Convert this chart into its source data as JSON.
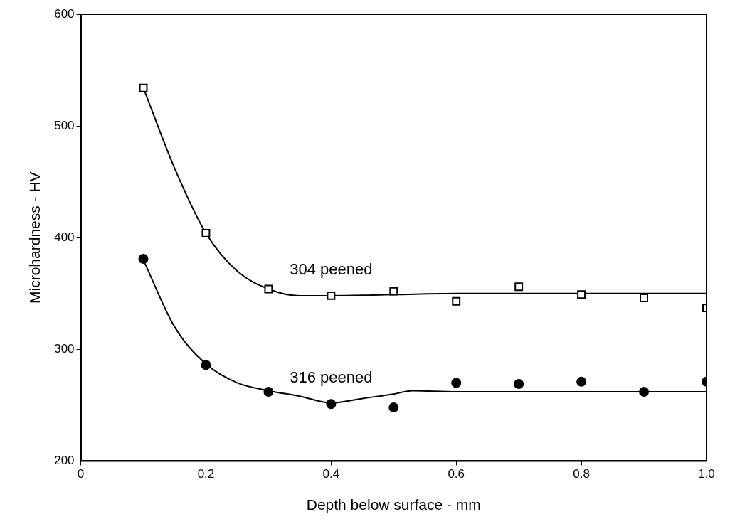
{
  "chart_data": {
    "type": "scatter",
    "xlabel": "Depth below surface - mm",
    "ylabel": "Microhardness - HV",
    "xlim": [
      0,
      1.0
    ],
    "xticks": [
      0,
      0.2,
      0.4,
      0.6,
      0.8,
      {
        "value": 1.0,
        "label": "1.0"
      }
    ],
    "ylim": [
      200,
      600
    ],
    "yticks": [
      200,
      300,
      400,
      500,
      600
    ],
    "grid": false,
    "legend": false,
    "series": [
      {
        "name": "304 peened",
        "marker": "square",
        "color": "#000000",
        "x": [
          0.1,
          0.2,
          0.3,
          0.4,
          0.5,
          0.6,
          0.7,
          0.8,
          0.9,
          1.0
        ],
        "values": [
          534,
          404,
          354,
          348,
          352,
          343,
          356,
          349,
          346,
          337
        ]
      },
      {
        "name": "316 peened",
        "marker": "circle",
        "color": "#000000",
        "x": [
          0.1,
          0.2,
          0.3,
          0.4,
          0.5,
          0.6,
          0.7,
          0.8,
          0.9,
          1.0
        ],
        "values": [
          381,
          286,
          262,
          251,
          248,
          270,
          269,
          271,
          262,
          271
        ]
      },
      {
        "type": "line",
        "marker": "none",
        "line_style": "solid",
        "color": "#000000",
        "x": [
          0.1,
          0.15,
          0.2,
          0.25,
          0.3,
          0.35,
          0.4,
          0.5,
          0.6,
          1.0
        ],
        "values": [
          534,
          462,
          404,
          370,
          354,
          348,
          348,
          349,
          350,
          350
        ]
      },
      {
        "type": "line",
        "marker": "none",
        "line_style": "solid",
        "color": "#000000",
        "x": [
          0.1,
          0.15,
          0.2,
          0.25,
          0.3,
          0.35,
          0.4,
          0.45,
          0.5,
          0.53,
          0.6,
          0.7,
          1.0
        ],
        "values": [
          380,
          320,
          287,
          270,
          263,
          258,
          252,
          256,
          260,
          263,
          262,
          262,
          262
        ]
      }
    ]
  }
}
